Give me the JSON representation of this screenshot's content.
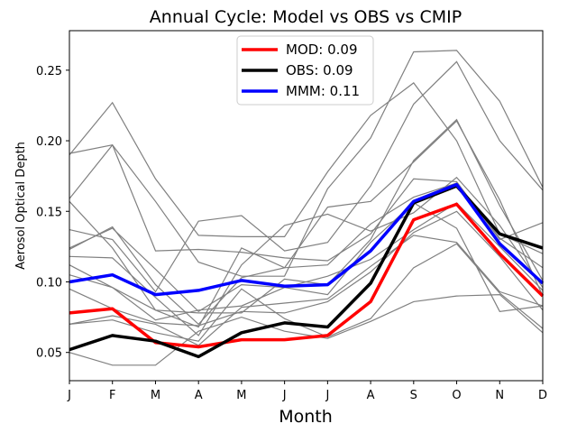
{
  "chart_data": {
    "type": "line",
    "title": "Annual Cycle: Model vs OBS vs CMIP",
    "xlabel": "Month",
    "ylabel": "Aerosol Optical Depth",
    "categories": [
      "J",
      "F",
      "M",
      "A",
      "M",
      "J",
      "J",
      "A",
      "S",
      "O",
      "N",
      "D"
    ],
    "ylim": [
      0.03,
      0.278
    ],
    "yticks": [
      0.05,
      0.1,
      0.15,
      0.2,
      0.25
    ],
    "ytick_labels": [
      "0.05",
      "0.10",
      "0.15",
      "0.20",
      "0.25"
    ],
    "grid": false,
    "legend_position": "upper center",
    "series": [
      {
        "name": "MOD: 0.09",
        "color": "#ff0000",
        "values": [
          0.078,
          0.081,
          0.057,
          0.054,
          0.059,
          0.059,
          0.062,
          0.086,
          0.144,
          0.155,
          0.12,
          0.09
        ]
      },
      {
        "name": "OBS: 0.09",
        "color": "#000000",
        "values": [
          0.052,
          0.062,
          0.058,
          0.047,
          0.064,
          0.071,
          0.068,
          0.099,
          0.156,
          0.168,
          0.134,
          0.124
        ]
      },
      {
        "name": "MMM: 0.11",
        "color": "#0000ff",
        "values": [
          0.1,
          0.105,
          0.091,
          0.094,
          0.101,
          0.097,
          0.098,
          0.122,
          0.157,
          0.169,
          0.127,
          0.099
        ]
      }
    ],
    "cmip_series_color": "#808080",
    "cmip_series": [
      [
        0.19,
        0.227,
        0.173,
        0.133,
        0.132,
        0.132,
        0.178,
        0.218,
        0.241,
        0.2,
        0.134,
        0.12
      ],
      [
        0.159,
        0.197,
        0.157,
        0.114,
        0.104,
        0.104,
        0.166,
        0.202,
        0.263,
        0.264,
        0.228,
        0.167
      ],
      [
        0.191,
        0.197,
        0.122,
        0.123,
        0.121,
        0.117,
        0.115,
        0.134,
        0.173,
        0.171,
        0.13,
        0.142
      ],
      [
        0.137,
        0.13,
        0.093,
        0.143,
        0.147,
        0.122,
        0.128,
        0.168,
        0.226,
        0.256,
        0.2,
        0.165
      ],
      [
        0.123,
        0.139,
        0.098,
        0.07,
        0.103,
        0.11,
        0.153,
        0.157,
        0.185,
        0.214,
        0.158,
        0.09
      ],
      [
        0.157,
        0.124,
        0.08,
        0.078,
        0.078,
        0.102,
        0.098,
        0.13,
        0.186,
        0.215,
        0.154,
        0.101
      ],
      [
        0.118,
        0.117,
        0.089,
        0.062,
        0.112,
        0.14,
        0.148,
        0.136,
        0.149,
        0.174,
        0.14,
        0.096
      ],
      [
        0.112,
        0.096,
        0.08,
        0.068,
        0.124,
        0.11,
        0.112,
        0.141,
        0.16,
        0.17,
        0.131,
        0.11
      ],
      [
        0.105,
        0.096,
        0.073,
        0.08,
        0.083,
        0.096,
        0.104,
        0.116,
        0.137,
        0.156,
        0.125,
        0.094
      ],
      [
        0.095,
        0.081,
        0.071,
        0.069,
        0.079,
        0.078,
        0.086,
        0.107,
        0.135,
        0.15,
        0.118,
        0.08
      ],
      [
        0.07,
        0.076,
        0.07,
        0.055,
        0.082,
        0.085,
        0.088,
        0.111,
        0.133,
        0.128,
        0.093,
        0.083
      ],
      [
        0.07,
        0.073,
        0.064,
        0.058,
        0.095,
        0.074,
        0.061,
        0.074,
        0.11,
        0.127,
        0.092,
        0.067
      ],
      [
        0.05,
        0.041,
        0.041,
        0.065,
        0.075,
        0.065,
        0.06,
        0.072,
        0.086,
        0.09,
        0.091,
        0.064
      ],
      [
        0.124,
        0.138,
        0.109,
        0.079,
        0.098,
        0.096,
        0.091,
        0.128,
        0.156,
        0.138,
        0.079,
        0.083
      ]
    ]
  }
}
